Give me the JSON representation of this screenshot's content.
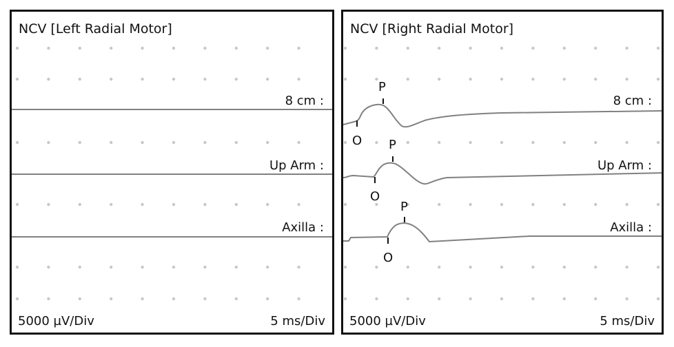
{
  "panels": [
    {
      "title": "NCV [Left Radial Motor]",
      "traces": [
        "8 cm :",
        "Up Arm :",
        "Axilla :"
      ],
      "sensitivity": "5000 µV/Div",
      "sweep": "5 ms/Div"
    },
    {
      "title": "NCV [Right Radial Motor]",
      "traces": [
        "8 cm :",
        "Up Arm :",
        "Axilla :"
      ],
      "sensitivity": "5000 µV/Div",
      "sweep": "5 ms/Div",
      "markers": {
        "onset": "O",
        "peak": "P"
      }
    }
  ],
  "colors": {
    "trace": "#808080",
    "grid_dot": "#c8c8c8",
    "border": "#111111"
  }
}
